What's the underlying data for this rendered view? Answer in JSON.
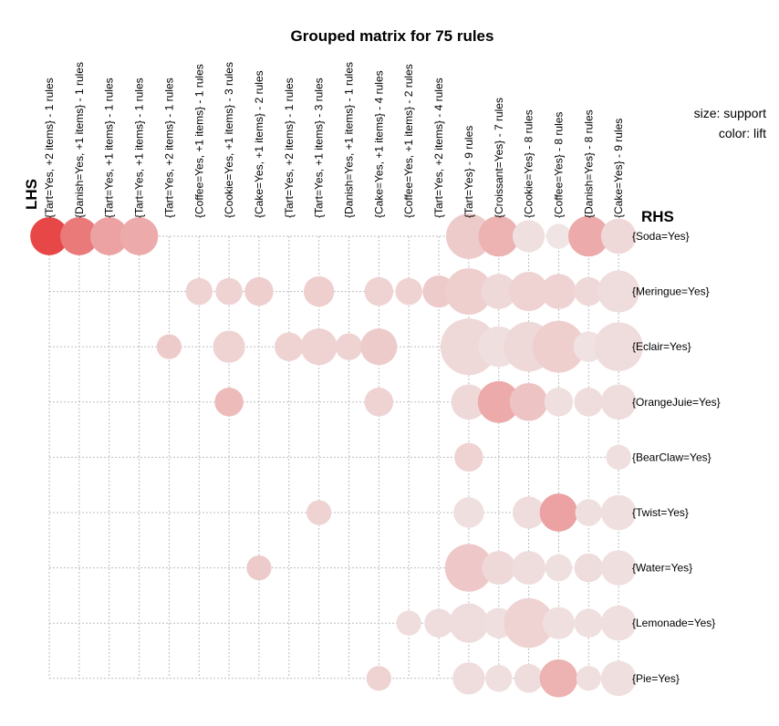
{
  "chart_data": {
    "type": "grouped-matrix",
    "title": "Grouped matrix for 75 rules",
    "lhs_axis_label": "LHS",
    "rhs_axis_label": "RHS",
    "legend": {
      "size_label": "size: support",
      "color_label": "color: lift",
      "placement": "top-right"
    },
    "lhs_groups": [
      "{Tart=Yes, +2 items} - 1 rules",
      "{Danish=Yes, +1 items} - 1 rules",
      "{Tart=Yes, +1 items} - 1 rules",
      "{Tart=Yes, +1 items} - 1 rules",
      "{Tart=Yes, +2 items} - 1 rules",
      "{Coffee=Yes, +1 items} - 1 rules",
      "{Cookie=Yes, +1 items} - 3 rules",
      "{Cake=Yes, +1 items} - 2 rules",
      "{Tart=Yes, +2 items} - 1 rules",
      "{Tart=Yes, +1 items} - 3 rules",
      "{Danish=Yes, +1 items} - 1 rules",
      "{Cake=Yes, +1 items} - 4 rules",
      "{Coffee=Yes, +1 items} - 2 rules",
      "{Tart=Yes, +2 items} - 4 rules",
      "{Tart=Yes} - 9 rules",
      "{Croissant=Yes} - 7 rules",
      "{Cookie=Yes} - 8 rules",
      "{Coffee=Yes} - 8 rules",
      "{Danish=Yes} - 8 rules",
      "{Cake=Yes} - 9 rules"
    ],
    "rhs_items": [
      "{Soda=Yes}",
      "{Meringue=Yes}",
      "{Eclair=Yes}",
      "{OrangeJuie=Yes}",
      "{BearClaw=Yes}",
      "{Twist=Yes}",
      "{Water=Yes}",
      "{Lemonade=Yes}",
      "{Pie=Yes}"
    ],
    "cell_fields": [
      "lhs_index",
      "rhs_index",
      "support",
      "lift"
    ],
    "cells": [
      [
        0,
        0,
        14,
        1.0
      ],
      [
        1,
        0,
        14,
        0.7
      ],
      [
        2,
        0,
        14,
        0.45
      ],
      [
        3,
        0,
        14,
        0.4
      ],
      [
        14,
        0,
        20,
        0.2
      ],
      [
        15,
        0,
        16,
        0.35
      ],
      [
        16,
        0,
        10,
        0.08
      ],
      [
        17,
        0,
        6,
        0.05
      ],
      [
        18,
        0,
        16,
        0.4
      ],
      [
        19,
        0,
        12,
        0.12
      ],
      [
        5,
        1,
        7,
        0.15
      ],
      [
        6,
        1,
        7,
        0.15
      ],
      [
        7,
        1,
        8,
        0.18
      ],
      [
        9,
        1,
        9,
        0.18
      ],
      [
        11,
        1,
        8,
        0.15
      ],
      [
        12,
        1,
        7,
        0.15
      ],
      [
        13,
        1,
        10,
        0.2
      ],
      [
        14,
        1,
        21,
        0.18
      ],
      [
        15,
        1,
        12,
        0.12
      ],
      [
        16,
        1,
        15,
        0.15
      ],
      [
        17,
        1,
        12,
        0.15
      ],
      [
        18,
        1,
        8,
        0.12
      ],
      [
        19,
        1,
        17,
        0.1
      ],
      [
        4,
        2,
        6,
        0.2
      ],
      [
        6,
        2,
        10,
        0.15
      ],
      [
        8,
        2,
        8,
        0.15
      ],
      [
        9,
        2,
        13,
        0.15
      ],
      [
        10,
        2,
        7,
        0.15
      ],
      [
        11,
        2,
        13,
        0.2
      ],
      [
        14,
        2,
        31,
        0.12
      ],
      [
        15,
        2,
        16,
        0.08
      ],
      [
        16,
        2,
        24,
        0.12
      ],
      [
        17,
        2,
        26,
        0.18
      ],
      [
        18,
        2,
        9,
        0.06
      ],
      [
        19,
        2,
        23,
        0.1
      ],
      [
        6,
        3,
        8,
        0.3
      ],
      [
        11,
        3,
        8,
        0.15
      ],
      [
        14,
        3,
        12,
        0.12
      ],
      [
        15,
        3,
        17,
        0.4
      ],
      [
        16,
        3,
        14,
        0.25
      ],
      [
        17,
        3,
        8,
        0.08
      ],
      [
        18,
        3,
        8,
        0.1
      ],
      [
        19,
        3,
        12,
        0.1
      ],
      [
        14,
        4,
        8,
        0.15
      ],
      [
        19,
        4,
        6,
        0.08
      ],
      [
        9,
        5,
        6,
        0.15
      ],
      [
        14,
        5,
        9,
        0.08
      ],
      [
        16,
        5,
        10,
        0.1
      ],
      [
        17,
        5,
        14,
        0.45
      ],
      [
        18,
        5,
        7,
        0.08
      ],
      [
        19,
        5,
        12,
        0.08
      ],
      [
        7,
        6,
        6,
        0.2
      ],
      [
        14,
        6,
        22,
        0.22
      ],
      [
        15,
        6,
        11,
        0.12
      ],
      [
        16,
        6,
        11,
        0.1
      ],
      [
        17,
        6,
        7,
        0.07
      ],
      [
        18,
        6,
        8,
        0.1
      ],
      [
        19,
        6,
        12,
        0.08
      ],
      [
        12,
        7,
        6,
        0.1
      ],
      [
        13,
        7,
        8,
        0.1
      ],
      [
        14,
        7,
        15,
        0.1
      ],
      [
        15,
        7,
        9,
        0.08
      ],
      [
        16,
        7,
        24,
        0.15
      ],
      [
        17,
        7,
        10,
        0.08
      ],
      [
        18,
        7,
        8,
        0.08
      ],
      [
        19,
        7,
        12,
        0.08
      ],
      [
        11,
        8,
        6,
        0.15
      ],
      [
        14,
        8,
        10,
        0.1
      ],
      [
        15,
        8,
        7,
        0.08
      ],
      [
        16,
        8,
        8,
        0.1
      ],
      [
        17,
        8,
        14,
        0.35
      ],
      [
        18,
        8,
        6,
        0.08
      ],
      [
        19,
        8,
        12,
        0.08
      ]
    ]
  }
}
